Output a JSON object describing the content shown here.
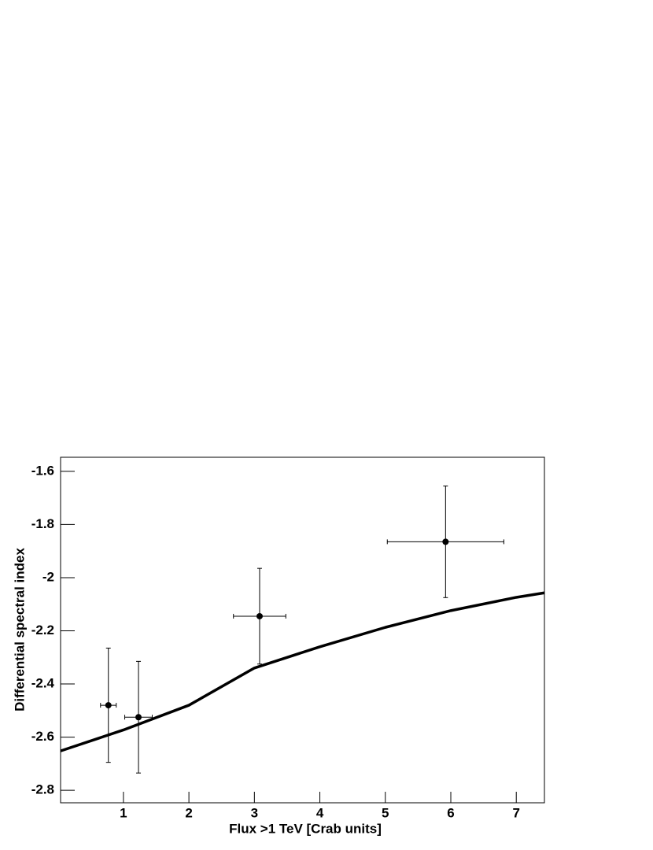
{
  "chart_data": {
    "type": "scatter",
    "x_label": "Flux >1 TeV [Crab units]",
    "y_label": "Differential spectral index",
    "xlim": [
      0.04,
      7.43
    ],
    "ylim": [
      -2.847,
      -1.547
    ],
    "xticks": [
      1,
      2,
      3,
      4,
      5,
      6,
      7
    ],
    "yticks": [
      -1.6,
      -1.8,
      -2,
      -2.2,
      -2.4,
      -2.6,
      -2.8
    ],
    "series": [
      {
        "type": "scatter",
        "color": "#000000",
        "x": [
          0.77,
          1.23,
          3.08,
          5.92
        ],
        "values": [
          -2.48,
          -2.525,
          -2.145,
          -1.865
        ],
        "xerr": [
          0.12,
          0.21,
          0.4,
          0.89
        ],
        "yerr": [
          0.215,
          0.21,
          0.18,
          0.21
        ]
      },
      {
        "type": "line",
        "color": "#000000",
        "x": [
          0.04,
          1,
          2,
          3,
          4,
          5,
          6,
          7,
          7.43
        ],
        "values": [
          -2.652,
          -2.573,
          -2.48,
          -2.34,
          -2.26,
          -2.187,
          -2.124,
          -2.074,
          -2.057
        ]
      }
    ]
  }
}
